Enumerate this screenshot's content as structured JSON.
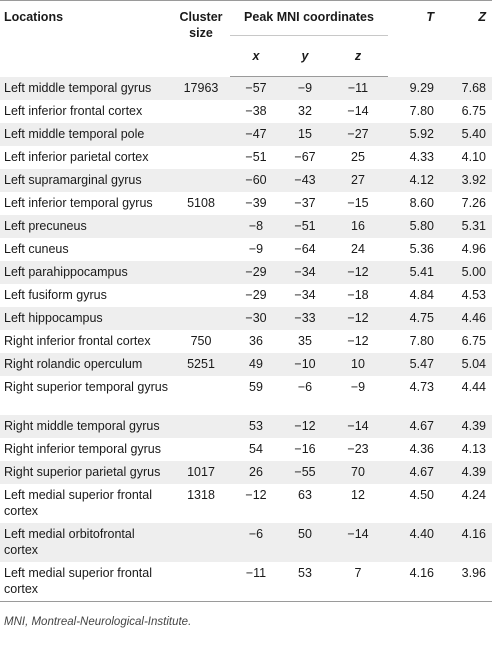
{
  "headers": {
    "locations": "Locations",
    "cluster_size": "Cluster size",
    "peak_mni": "Peak MNI coordinates",
    "x": "x",
    "y": "y",
    "z": "z",
    "T": "T",
    "Z": "Z"
  },
  "rows": [
    {
      "location": "Left middle temporal gyrus",
      "cluster": "17963",
      "x": "−57",
      "y": "−9",
      "z": "−11",
      "T": "9.29",
      "Z": "7.68"
    },
    {
      "location": "Left inferior frontal cortex",
      "cluster": "",
      "x": "−38",
      "y": "32",
      "z": "−14",
      "T": "7.80",
      "Z": "6.75"
    },
    {
      "location": "Left middle temporal pole",
      "cluster": "",
      "x": "−47",
      "y": "15",
      "z": "−27",
      "T": "5.92",
      "Z": "5.40"
    },
    {
      "location": "Left inferior parietal cortex",
      "cluster": "",
      "x": "−51",
      "y": "−67",
      "z": "25",
      "T": "4.33",
      "Z": "4.10"
    },
    {
      "location": "Left supramarginal gyrus",
      "cluster": "",
      "x": "−60",
      "y": "−43",
      "z": "27",
      "T": "4.12",
      "Z": "3.92"
    },
    {
      "location": "Left inferior temporal gyrus",
      "cluster": "5108",
      "x": "−39",
      "y": "−37",
      "z": "−15",
      "T": "8.60",
      "Z": "7.26"
    },
    {
      "location": "Left precuneus",
      "cluster": "",
      "x": "−8",
      "y": "−51",
      "z": "16",
      "T": "5.80",
      "Z": "5.31"
    },
    {
      "location": "Left cuneus",
      "cluster": "",
      "x": "−9",
      "y": "−64",
      "z": "24",
      "T": "5.36",
      "Z": "4.96"
    },
    {
      "location": "Left parahippocampus",
      "cluster": "",
      "x": "−29",
      "y": "−34",
      "z": "−12",
      "T": "5.41",
      "Z": "5.00"
    },
    {
      "location": "Left fusiform gyrus",
      "cluster": "",
      "x": "−29",
      "y": "−34",
      "z": "−18",
      "T": "4.84",
      "Z": "4.53"
    },
    {
      "location": "Left hippocampus",
      "cluster": "",
      "x": "−30",
      "y": "−33",
      "z": "−12",
      "T": "4.75",
      "Z": "4.46"
    },
    {
      "location": "Right inferior frontal cortex",
      "cluster": "750",
      "x": "36",
      "y": "35",
      "z": "−12",
      "T": "7.80",
      "Z": "6.75"
    },
    {
      "location": "Right rolandic operculum",
      "cluster": "5251",
      "x": "49",
      "y": "−10",
      "z": "10",
      "T": "5.47",
      "Z": "5.04"
    },
    {
      "location": "Right superior temporal gyrus",
      "cluster": "",
      "x": "59",
      "y": "−6",
      "z": "−9",
      "T": "4.73",
      "Z": "4.44"
    },
    {
      "location": "Right middle temporal gyrus",
      "cluster": "",
      "x": "53",
      "y": "−12",
      "z": "−14",
      "T": "4.67",
      "Z": "4.39"
    },
    {
      "location": "Right inferior temporal gyrus",
      "cluster": "",
      "x": "54",
      "y": "−16",
      "z": "−23",
      "T": "4.36",
      "Z": "4.13"
    },
    {
      "location": "Right superior parietal gyrus",
      "cluster": "1017",
      "x": "26",
      "y": "−55",
      "z": "70",
      "T": "4.67",
      "Z": "4.39"
    },
    {
      "location": "Left medial superior frontal cortex",
      "cluster": "1318",
      "x": "−12",
      "y": "63",
      "z": "12",
      "T": "4.50",
      "Z": "4.24"
    },
    {
      "location": "Left medial orbitofrontal cortex",
      "cluster": "",
      "x": "−6",
      "y": "50",
      "z": "−14",
      "T": "4.40",
      "Z": "4.16"
    },
    {
      "location": "Left medial superior frontal cortex",
      "cluster": "",
      "x": "−11",
      "y": "53",
      "z": "7",
      "T": "4.16",
      "Z": "3.96"
    }
  ],
  "footnote": "MNI, Montreal-Neurological-Institute."
}
